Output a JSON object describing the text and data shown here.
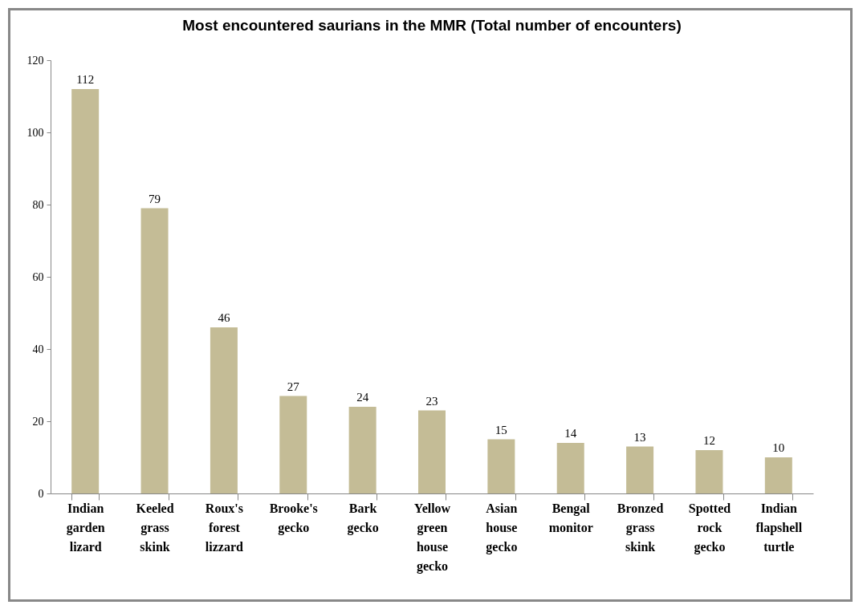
{
  "chart_data": {
    "type": "bar",
    "title": "Most encountered  saurians in the MMR (Total number of encounters)",
    "categories": [
      "Indian garden lizard",
      "Keeled grass skink",
      "Roux's forest lizzard",
      "Brooke's gecko",
      "Bark gecko",
      "Yellow green house gecko",
      "Asian house gecko",
      "Bengal monitor",
      "Bronzed grass skink",
      "Spotted rock gecko",
      "Indian flapshell turtle"
    ],
    "values": [
      112,
      79,
      46,
      27,
      24,
      23,
      15,
      14,
      13,
      12,
      10
    ],
    "color": "#c4bc96",
    "ylim": [
      0,
      120
    ],
    "yticks": [
      0,
      20,
      40,
      60,
      80,
      100,
      120
    ],
    "grid": false,
    "data_labels": true
  }
}
